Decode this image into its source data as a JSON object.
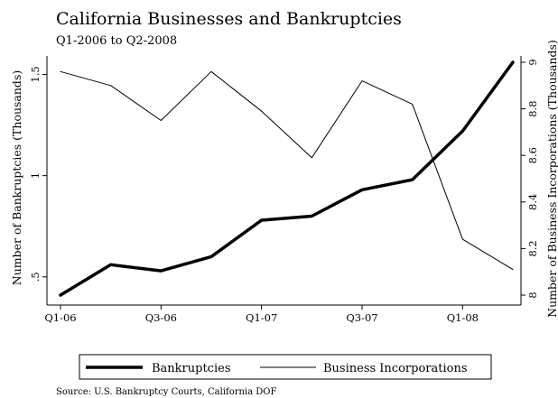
{
  "chart_data": {
    "type": "line",
    "title": "California Businesses and Bankruptcies",
    "subtitle": "Q1-2006 to Q2-2008",
    "source": "Source: U.S. Bankruptcy Courts, California DOF",
    "x": [
      "Q1-06",
      "Q2-06",
      "Q3-06",
      "Q4-06",
      "Q1-07",
      "Q2-07",
      "Q3-07",
      "Q4-07",
      "Q1-08",
      "Q2-08"
    ],
    "xticks": [
      "Q1-06",
      "Q3-06",
      "Q1-07",
      "Q3-07",
      "Q1-08"
    ],
    "y_left": {
      "label": "Number of Bankruptcies (Thousands)",
      "ticks": [
        ".5",
        "1",
        "1.5"
      ],
      "tick_values": [
        0.5,
        1,
        1.5
      ],
      "range": [
        0.41,
        1.56
      ]
    },
    "y_right": {
      "label": "Number of Business Incorporations (Thousands)",
      "ticks": [
        "8",
        "8.2",
        "8.4",
        "8.6",
        "8.8",
        "9"
      ],
      "tick_values": [
        8,
        8.2,
        8.4,
        8.6,
        8.8,
        9
      ],
      "range": [
        8.0,
        9.0
      ]
    },
    "series": [
      {
        "name": "Bankruptcies",
        "axis": "left",
        "style": "thick",
        "values": [
          0.41,
          0.56,
          0.53,
          0.6,
          0.78,
          0.8,
          0.93,
          0.98,
          1.22,
          1.56
        ]
      },
      {
        "name": "Business Incorporations",
        "axis": "right",
        "style": "thin",
        "values": [
          8.96,
          8.9,
          8.75,
          8.96,
          8.79,
          8.59,
          8.92,
          8.82,
          8.24,
          8.11
        ]
      }
    ],
    "legend_position": "bottom",
    "grid": false
  }
}
